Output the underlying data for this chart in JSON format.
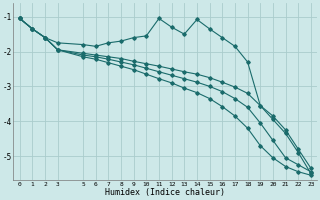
{
  "bg_color": "#cde8e8",
  "grid_color": "#aacccc",
  "line_color": "#1a6b6b",
  "xlabel": "Humidex (Indice chaleur)",
  "xlim": [
    -0.5,
    23.5
  ],
  "ylim": [
    -5.7,
    -0.6
  ],
  "yticks": [
    -5,
    -4,
    -3,
    -2,
    -1
  ],
  "xticks": [
    0,
    1,
    2,
    3,
    5,
    6,
    7,
    8,
    9,
    10,
    11,
    12,
    13,
    14,
    15,
    16,
    17,
    18,
    19,
    20,
    21,
    22,
    23
  ],
  "line1_x": [
    0,
    1,
    2,
    3,
    5,
    6,
    7,
    8,
    9,
    10,
    11,
    12,
    13,
    14,
    15,
    16,
    17,
    18,
    19,
    20,
    21,
    22,
    23
  ],
  "line1_y": [
    -1.05,
    -1.35,
    -1.6,
    -1.75,
    -1.8,
    -1.85,
    -1.75,
    -1.7,
    -1.6,
    -1.55,
    -1.05,
    -1.3,
    -1.5,
    -1.08,
    -1.35,
    -1.6,
    -1.85,
    -2.3,
    -3.55,
    -3.95,
    -4.35,
    -4.9,
    -5.5
  ],
  "line2_x": [
    0,
    1,
    2,
    3,
    5,
    6,
    7,
    8,
    9,
    10,
    11,
    12,
    13,
    14,
    15,
    16,
    17,
    18,
    19,
    20,
    21,
    22,
    23
  ],
  "line2_y": [
    -1.05,
    -1.35,
    -1.6,
    -1.95,
    -2.05,
    -2.1,
    -2.15,
    -2.2,
    -2.28,
    -2.35,
    -2.42,
    -2.5,
    -2.58,
    -2.65,
    -2.75,
    -2.88,
    -3.02,
    -3.2,
    -3.55,
    -3.85,
    -4.25,
    -4.8,
    -5.35
  ],
  "line3_x": [
    0,
    1,
    2,
    3,
    5,
    6,
    7,
    8,
    9,
    10,
    11,
    12,
    13,
    14,
    15,
    16,
    17,
    18,
    19,
    20,
    21,
    22,
    23
  ],
  "line3_y": [
    -1.05,
    -1.35,
    -1.6,
    -1.95,
    -2.1,
    -2.15,
    -2.22,
    -2.3,
    -2.38,
    -2.48,
    -2.58,
    -2.68,
    -2.78,
    -2.88,
    -3.0,
    -3.15,
    -3.35,
    -3.6,
    -4.05,
    -4.55,
    -5.05,
    -5.25,
    -5.45
  ],
  "line4_x": [
    0,
    1,
    2,
    3,
    5,
    6,
    7,
    8,
    9,
    10,
    11,
    12,
    13,
    14,
    15,
    16,
    17,
    18,
    19,
    20,
    21,
    22,
    23
  ],
  "line4_y": [
    -1.05,
    -1.35,
    -1.6,
    -1.95,
    -2.15,
    -2.22,
    -2.32,
    -2.42,
    -2.52,
    -2.65,
    -2.78,
    -2.9,
    -3.05,
    -3.18,
    -3.35,
    -3.58,
    -3.85,
    -4.2,
    -4.7,
    -5.05,
    -5.3,
    -5.45,
    -5.55
  ]
}
